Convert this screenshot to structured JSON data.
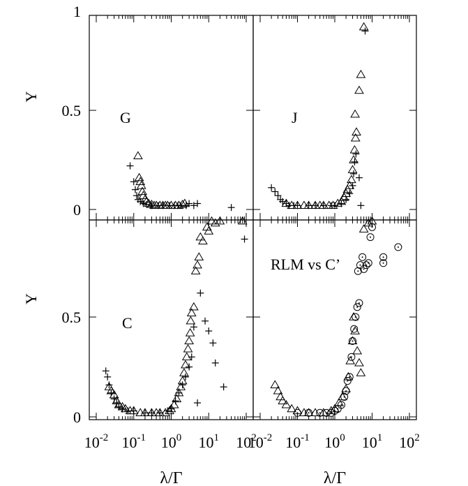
{
  "chart_data": [
    {
      "panel": "top-left",
      "type": "scatter",
      "label": "G",
      "xscale": "log",
      "xlim": [
        0.01,
        100
      ],
      "ylim": [
        0,
        1
      ],
      "ylabel": "Y",
      "yticks": [
        0,
        0.5,
        1
      ],
      "ytick_labels": [
        "0",
        "0.5",
        "1"
      ],
      "series": [
        {
          "marker": "triangle",
          "points": [
            [
              0.13,
              0.27
            ],
            [
              0.14,
              0.16
            ],
            [
              0.15,
              0.14
            ],
            [
              0.16,
              0.12
            ],
            [
              0.17,
              0.09
            ],
            [
              0.18,
              0.07
            ],
            [
              0.2,
              0.05
            ],
            [
              0.22,
              0.04
            ],
            [
              0.25,
              0.03
            ],
            [
              0.3,
              0.025
            ],
            [
              0.35,
              0.02
            ],
            [
              0.4,
              0.02
            ],
            [
              0.5,
              0.02
            ],
            [
              0.6,
              0.02
            ],
            [
              0.7,
              0.02
            ],
            [
              0.8,
              0.02
            ],
            [
              1.0,
              0.02
            ],
            [
              1.3,
              0.02
            ],
            [
              1.6,
              0.02
            ],
            [
              2.0,
              0.025
            ],
            [
              2.3,
              0.03
            ]
          ]
        },
        {
          "marker": "plus",
          "points": [
            [
              0.08,
              0.22
            ],
            [
              0.1,
              0.14
            ],
            [
              0.11,
              0.1
            ],
            [
              0.12,
              0.07
            ],
            [
              0.13,
              0.05
            ],
            [
              0.15,
              0.04
            ],
            [
              0.18,
              0.03
            ],
            [
              0.22,
              0.025
            ],
            [
              0.3,
              0.02
            ],
            [
              0.45,
              0.02
            ],
            [
              0.6,
              0.02
            ],
            [
              0.9,
              0.02
            ],
            [
              1.2,
              0.02
            ],
            [
              1.5,
              0.02
            ],
            [
              1.8,
              0.02
            ],
            [
              2.5,
              0.02
            ],
            [
              3.0,
              0.03
            ],
            [
              4.0,
              0.02
            ],
            [
              5.0,
              0.03
            ],
            [
              40,
              0.01
            ]
          ]
        }
      ]
    },
    {
      "panel": "top-right",
      "type": "scatter",
      "label": "J",
      "xscale": "log",
      "xlim": [
        0.01,
        100
      ],
      "ylim": [
        0,
        1
      ],
      "series": [
        {
          "marker": "triangle",
          "points": [
            [
              0.05,
              0.03
            ],
            [
              0.07,
              0.02
            ],
            [
              0.1,
              0.02
            ],
            [
              0.15,
              0.02
            ],
            [
              0.2,
              0.02
            ],
            [
              0.3,
              0.02
            ],
            [
              0.4,
              0.02
            ],
            [
              0.5,
              0.02
            ],
            [
              0.7,
              0.02
            ],
            [
              0.9,
              0.02
            ],
            [
              1.2,
              0.03
            ],
            [
              1.5,
              0.04
            ],
            [
              1.8,
              0.06
            ],
            [
              2.0,
              0.08
            ],
            [
              2.2,
              0.1
            ],
            [
              2.5,
              0.12
            ],
            [
              2.8,
              0.15
            ],
            [
              3.0,
              0.2
            ],
            [
              3.2,
              0.25
            ],
            [
              3.4,
              0.3
            ],
            [
              3.6,
              0.36
            ],
            [
              3.8,
              0.39
            ],
            [
              3.5,
              0.48
            ],
            [
              4.5,
              0.6
            ],
            [
              5.0,
              0.68
            ],
            [
              6.0,
              0.92
            ]
          ]
        },
        {
          "marker": "plus",
          "points": [
            [
              0.02,
              0.11
            ],
            [
              0.025,
              0.09
            ],
            [
              0.03,
              0.07
            ],
            [
              0.035,
              0.05
            ],
            [
              0.04,
              0.04
            ],
            [
              0.05,
              0.03
            ],
            [
              0.06,
              0.02
            ],
            [
              0.08,
              0.02
            ],
            [
              0.1,
              0.02
            ],
            [
              0.2,
              0.02
            ],
            [
              0.3,
              0.02
            ],
            [
              0.5,
              0.02
            ],
            [
              0.8,
              0.02
            ],
            [
              1.0,
              0.02
            ],
            [
              1.5,
              0.03
            ],
            [
              2.0,
              0.05
            ],
            [
              2.5,
              0.08
            ],
            [
              3.0,
              0.12
            ],
            [
              3.2,
              0.18
            ],
            [
              3.4,
              0.24
            ],
            [
              3.7,
              0.28
            ],
            [
              4.5,
              0.16
            ],
            [
              5.0,
              0.02
            ],
            [
              6.5,
              0.9
            ]
          ]
        }
      ]
    },
    {
      "panel": "bottom-left",
      "type": "scatter",
      "label": "C",
      "xscale": "log",
      "xlim": [
        0.01,
        100
      ],
      "ylim": [
        0,
        1
      ],
      "ylabel": "Y",
      "xlabel": "λ/Γ",
      "yticks": [
        0,
        0.5
      ],
      "ytick_labels": [
        "0",
        "0.5"
      ],
      "series": [
        {
          "marker": "triangle",
          "points": [
            [
              0.022,
              0.15
            ],
            [
              0.025,
              0.13
            ],
            [
              0.03,
              0.11
            ],
            [
              0.035,
              0.08
            ],
            [
              0.04,
              0.06
            ],
            [
              0.05,
              0.05
            ],
            [
              0.06,
              0.04
            ],
            [
              0.08,
              0.03
            ],
            [
              0.1,
              0.03
            ],
            [
              0.15,
              0.02
            ],
            [
              0.2,
              0.02
            ],
            [
              0.3,
              0.02
            ],
            [
              0.4,
              0.02
            ],
            [
              0.5,
              0.02
            ],
            [
              0.7,
              0.02
            ],
            [
              0.9,
              0.03
            ],
            [
              1.0,
              0.04
            ],
            [
              1.2,
              0.06
            ],
            [
              1.4,
              0.09
            ],
            [
              1.6,
              0.12
            ],
            [
              1.8,
              0.15
            ],
            [
              2.0,
              0.18
            ],
            [
              2.2,
              0.22
            ],
            [
              2.4,
              0.26
            ],
            [
              2.6,
              0.3
            ],
            [
              2.8,
              0.34
            ],
            [
              3.0,
              0.38
            ],
            [
              3.2,
              0.42
            ],
            [
              3.3,
              0.48
            ],
            [
              3.5,
              0.52
            ],
            [
              4.0,
              0.55
            ],
            [
              4.5,
              0.73
            ],
            [
              5.0,
              0.76
            ],
            [
              5.5,
              0.8
            ],
            [
              6.0,
              0.9
            ],
            [
              7.0,
              0.88
            ],
            [
              9.0,
              0.95
            ],
            [
              10,
              0.93
            ],
            [
              12,
              0.98
            ],
            [
              15,
              0.97
            ],
            [
              20,
              0.98
            ],
            [
              40,
              0.99
            ],
            [
              60,
              0.99
            ],
            [
              80,
              0.98
            ]
          ]
        },
        {
          "marker": "plus",
          "points": [
            [
              0.018,
              0.23
            ],
            [
              0.02,
              0.2
            ],
            [
              0.022,
              0.16
            ],
            [
              0.025,
              0.12
            ],
            [
              0.03,
              0.09
            ],
            [
              0.035,
              0.07
            ],
            [
              0.04,
              0.05
            ],
            [
              0.05,
              0.04
            ],
            [
              0.07,
              0.03
            ],
            [
              0.1,
              0.03
            ],
            [
              0.2,
              0.02
            ],
            [
              0.3,
              0.02
            ],
            [
              0.5,
              0.02
            ],
            [
              0.8,
              0.03
            ],
            [
              1.0,
              0.04
            ],
            [
              1.3,
              0.08
            ],
            [
              1.6,
              0.12
            ],
            [
              2.0,
              0.16
            ],
            [
              2.4,
              0.2
            ],
            [
              3.0,
              0.25
            ],
            [
              3.5,
              0.3
            ],
            [
              4.0,
              0.45
            ],
            [
              5.0,
              0.07
            ],
            [
              6.0,
              0.62
            ],
            [
              8.0,
              0.48
            ],
            [
              10,
              0.43
            ],
            [
              13,
              0.37
            ],
            [
              15,
              0.27
            ],
            [
              25,
              0.15
            ],
            [
              90,
              0.89
            ]
          ]
        }
      ]
    },
    {
      "panel": "bottom-right",
      "type": "scatter",
      "label": "RLM vs C’",
      "xscale": "log",
      "xlim": [
        0.01,
        100
      ],
      "ylim": [
        0,
        1
      ],
      "xlabel": "λ/Γ",
      "series": [
        {
          "marker": "triangle",
          "points": [
            [
              0.025,
              0.16
            ],
            [
              0.03,
              0.13
            ],
            [
              0.035,
              0.1
            ],
            [
              0.04,
              0.08
            ],
            [
              0.05,
              0.06
            ],
            [
              0.07,
              0.04
            ],
            [
              0.1,
              0.03
            ],
            [
              0.15,
              0.02
            ],
            [
              0.2,
              0.02
            ],
            [
              0.3,
              0.02
            ],
            [
              0.5,
              0.02
            ],
            [
              0.8,
              0.03
            ],
            [
              1.0,
              0.04
            ],
            [
              1.3,
              0.07
            ],
            [
              1.6,
              0.1
            ],
            [
              2.0,
              0.14
            ],
            [
              2.3,
              0.2
            ],
            [
              2.6,
              0.28
            ],
            [
              3.0,
              0.38
            ],
            [
              3.2,
              0.5
            ],
            [
              3.5,
              0.43
            ],
            [
              4.0,
              0.33
            ],
            [
              4.5,
              0.27
            ],
            [
              5.0,
              0.22
            ],
            [
              6.0,
              0.94
            ],
            [
              8.0,
              0.97
            ],
            [
              10,
              0.98
            ],
            [
              15,
              0.99
            ],
            [
              30,
              0.99
            ],
            [
              50,
              0.99
            ],
            [
              100,
              1.0
            ]
          ]
        },
        {
          "marker": "circle",
          "points": [
            [
              0.1,
              0.02
            ],
            [
              0.2,
              0.02
            ],
            [
              0.4,
              0.02
            ],
            [
              0.6,
              0.02
            ],
            [
              0.8,
              0.02
            ],
            [
              1.0,
              0.03
            ],
            [
              1.2,
              0.04
            ],
            [
              1.5,
              0.06
            ],
            [
              1.8,
              0.1
            ],
            [
              2.0,
              0.13
            ],
            [
              2.2,
              0.18
            ],
            [
              2.5,
              0.2
            ],
            [
              2.8,
              0.3
            ],
            [
              3.0,
              0.38
            ],
            [
              3.3,
              0.44
            ],
            [
              3.6,
              0.5
            ],
            [
              4.0,
              0.55
            ],
            [
              4.5,
              0.57
            ],
            [
              4.2,
              0.73
            ],
            [
              4.8,
              0.76
            ],
            [
              5.5,
              0.8
            ],
            [
              6.0,
              0.74
            ],
            [
              7.0,
              0.76
            ],
            [
              8.0,
              0.77
            ],
            [
              9.0,
              0.9
            ],
            [
              10,
              0.95
            ],
            [
              20,
              0.8
            ],
            [
              20,
              0.77
            ],
            [
              50,
              0.85
            ],
            [
              60,
              0.99
            ],
            [
              150,
              1.0
            ]
          ]
        }
      ]
    }
  ],
  "axes": {
    "x_tick_values": [
      0.01,
      0.1,
      1,
      10,
      100
    ],
    "x_tick_labels": [
      {
        "base": "10",
        "exp": "-2"
      },
      {
        "base": "10",
        "exp": "-1"
      },
      {
        "base": "10",
        "exp": "0"
      },
      {
        "base": "10",
        "exp": "1"
      },
      {
        "base": "10",
        "exp": "2"
      }
    ],
    "xlabel": "λ/Γ",
    "ylabel": "Y"
  }
}
